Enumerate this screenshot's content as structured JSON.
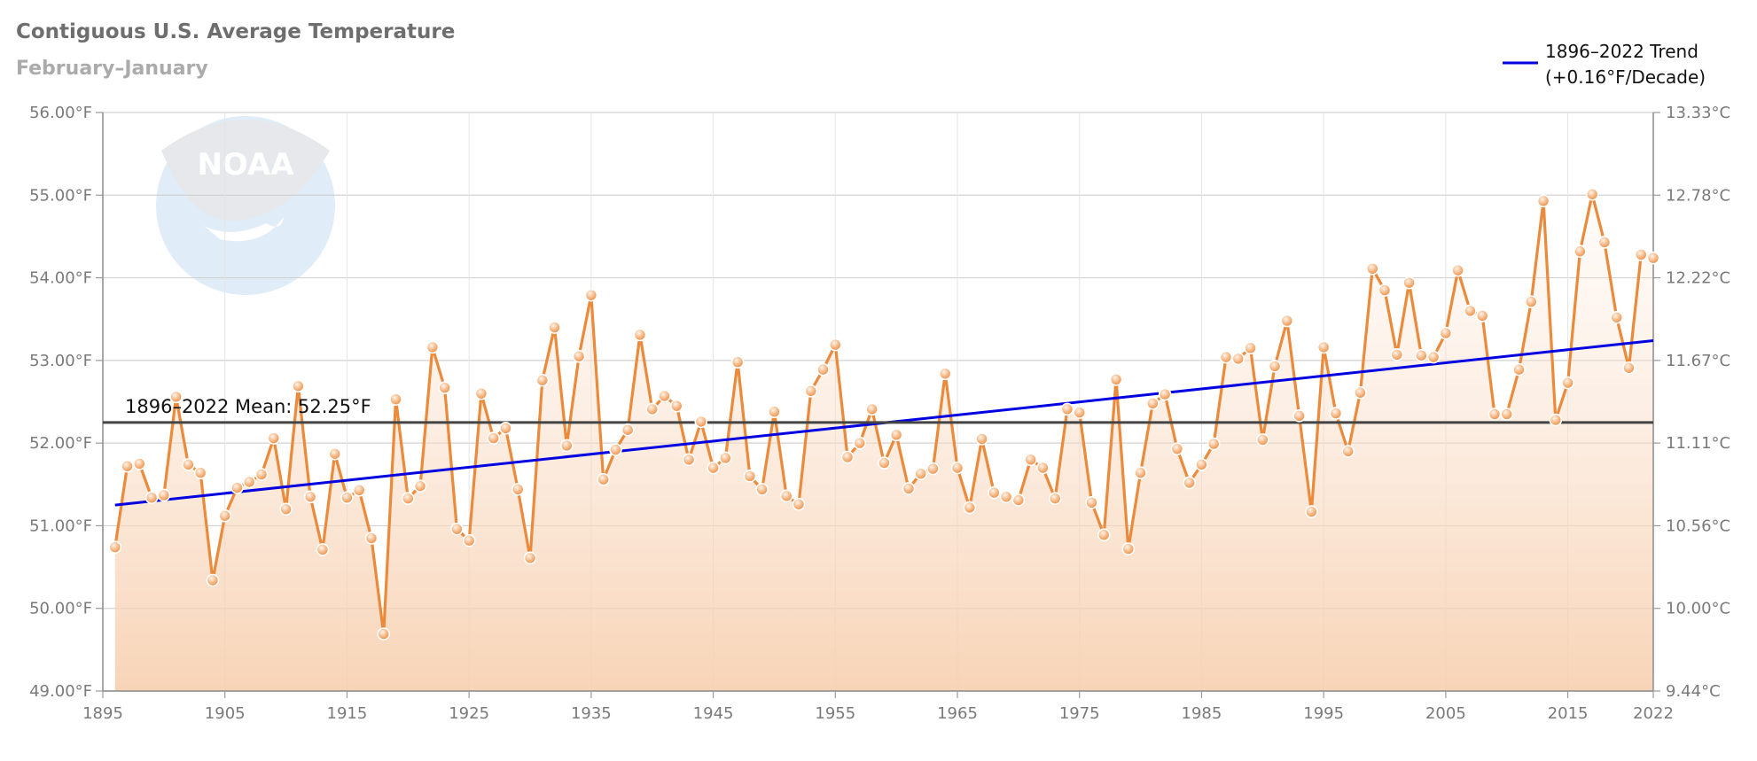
{
  "chart_data": {
    "type": "line",
    "title": "Contiguous U.S. Average Temperature",
    "subtitle": "February–January",
    "x": [
      1896,
      1897,
      1898,
      1899,
      1900,
      1901,
      1902,
      1903,
      1904,
      1905,
      1906,
      1907,
      1908,
      1909,
      1910,
      1911,
      1912,
      1913,
      1914,
      1915,
      1916,
      1917,
      1918,
      1919,
      1920,
      1921,
      1922,
      1923,
      1924,
      1925,
      1926,
      1927,
      1928,
      1929,
      1930,
      1931,
      1932,
      1933,
      1934,
      1935,
      1936,
      1937,
      1938,
      1939,
      1940,
      1941,
      1942,
      1943,
      1944,
      1945,
      1946,
      1947,
      1948,
      1949,
      1950,
      1951,
      1952,
      1953,
      1954,
      1955,
      1956,
      1957,
      1958,
      1959,
      1960,
      1961,
      1962,
      1963,
      1964,
      1965,
      1966,
      1967,
      1968,
      1969,
      1970,
      1971,
      1972,
      1973,
      1974,
      1975,
      1976,
      1977,
      1978,
      1979,
      1980,
      1981,
      1982,
      1983,
      1984,
      1985,
      1986,
      1987,
      1988,
      1989,
      1990,
      1991,
      1992,
      1993,
      1994,
      1995,
      1996,
      1997,
      1998,
      1999,
      2000,
      2001,
      2002,
      2003,
      2004,
      2005,
      2006,
      2007,
      2008,
      2009,
      2010,
      2011,
      2012,
      2013,
      2014,
      2015,
      2016,
      2017,
      2018,
      2019,
      2020,
      2021,
      2022
    ],
    "series": [
      {
        "values": [
          50.74,
          51.72,
          51.75,
          51.34,
          51.37,
          52.56,
          51.74,
          51.64,
          50.34,
          51.12,
          51.46,
          51.53,
          51.62,
          52.06,
          51.2,
          52.69,
          51.35,
          50.71,
          51.87,
          51.34,
          51.43,
          50.85,
          49.69,
          52.53,
          51.33,
          51.48,
          53.16,
          52.67,
          50.96,
          50.82,
          52.6,
          52.06,
          52.18,
          51.44,
          50.61,
          52.76,
          53.4,
          51.97,
          53.05,
          53.79,
          51.56,
          51.92,
          52.16,
          53.31,
          52.41,
          52.57,
          52.45,
          51.8,
          52.26,
          51.7,
          51.82,
          52.98,
          51.6,
          51.44,
          52.38,
          51.36,
          51.26,
          52.63,
          52.89,
          53.19,
          51.83,
          52.0,
          52.41,
          51.76,
          52.1,
          51.45,
          51.63,
          51.69,
          52.84,
          51.7,
          51.22,
          52.05,
          51.4,
          51.35,
          51.31,
          51.8,
          51.7,
          51.33,
          52.41,
          52.37,
          51.28,
          50.89,
          52.77,
          50.72,
          51.64,
          52.48,
          52.59,
          51.93,
          51.52,
          51.74,
          51.99,
          53.04,
          53.02,
          53.15,
          52.04,
          52.93,
          53.48,
          52.33,
          51.17,
          53.16,
          52.36,
          51.9,
          52.61,
          54.11,
          53.85,
          53.07,
          53.94,
          53.06,
          53.04,
          53.33,
          54.09,
          53.6,
          53.54,
          52.35,
          52.35,
          52.89,
          53.71,
          54.93,
          52.28,
          52.73,
          54.32,
          55.01,
          54.43,
          53.52,
          52.91,
          54.28,
          54.24
        ]
      }
    ],
    "xlim": [
      1895,
      2022
    ],
    "ylim": [
      49.0,
      56.0
    ],
    "x_ticks": [
      "1895",
      "1905",
      "1915",
      "1925",
      "1935",
      "1945",
      "1955",
      "1965",
      "1975",
      "1985",
      "1995",
      "2005",
      "2015",
      "2022"
    ],
    "y_ticks_left": [
      "49.00°F",
      "50.00°F",
      "51.00°F",
      "52.00°F",
      "53.00°F",
      "54.00°F",
      "55.00°F",
      "56.00°F"
    ],
    "y_ticks_right": [
      "9.44°C",
      "10.00°C",
      "10.56°C",
      "11.11°C",
      "11.67°C",
      "12.22°C",
      "12.78°C",
      "13.33°C"
    ],
    "mean": {
      "value": 52.25,
      "label": "1896–2022 Mean: 52.25°F",
      "color": "#444444"
    },
    "trend": {
      "label_line1": "1896–2022 Trend",
      "label_line2": "(+0.16°F/Decade)",
      "start": [
        1896,
        51.25
      ],
      "end": [
        2022,
        53.24
      ],
      "color": "#0000e0"
    },
    "series_color": "#ec8a3c",
    "grid": true,
    "legend_position": "top-right",
    "watermark_text": "NOAA"
  }
}
